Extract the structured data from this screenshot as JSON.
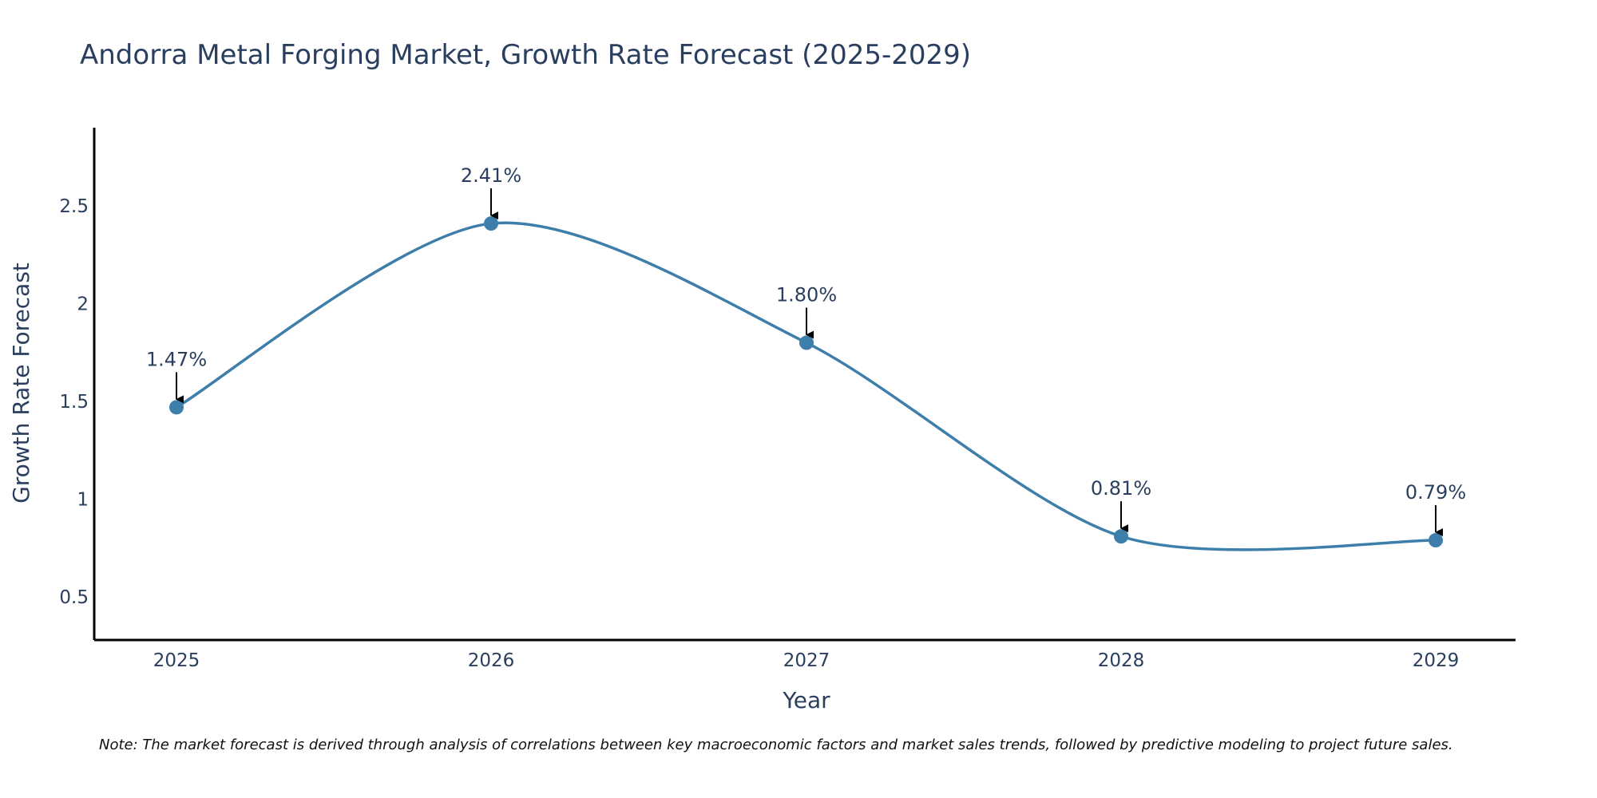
{
  "chart_data": {
    "type": "line",
    "title": "Andorra Metal Forging Market, Growth Rate Forecast (2025-2029)",
    "xlabel": "Year",
    "ylabel": "Growth Rate Forecast",
    "categories": [
      "2025",
      "2026",
      "2027",
      "2028",
      "2029"
    ],
    "series": [
      {
        "name": "Growth Rate Forecast",
        "values": [
          1.47,
          2.41,
          1.8,
          0.81,
          0.79
        ],
        "labels": [
          "1.47%",
          "2.41%",
          "1.80%",
          "0.81%",
          "0.79%"
        ]
      }
    ],
    "ylim": [
      0.28,
      2.9
    ],
    "yticks": [
      0.5,
      1,
      1.5,
      2,
      2.5
    ],
    "ytick_labels": [
      "0.5",
      "1",
      "1.5",
      "2",
      "2.5"
    ],
    "line_color": "#3d7eab",
    "marker_color": "#3d7eab",
    "line_shape": "spline",
    "grid": false,
    "note": "Note: The market forecast is derived through analysis of correlations between key macroeconomic factors and market sales trends, followed by predictive modeling to project future sales."
  }
}
